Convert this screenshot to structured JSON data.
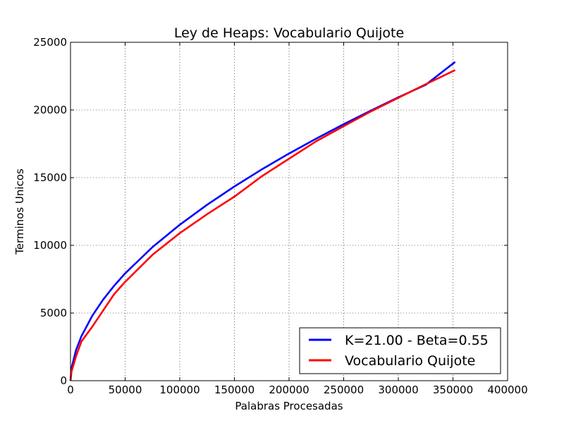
{
  "chart_data": {
    "type": "line",
    "title": "Ley de Heaps: Vocabulario Quijote",
    "xlabel": "Palabras Procesadas",
    "ylabel": "Terminos Unicos",
    "xlim": [
      0,
      400000
    ],
    "ylim": [
      0,
      25000
    ],
    "x_ticks": [
      0,
      50000,
      100000,
      150000,
      200000,
      250000,
      300000,
      350000,
      400000
    ],
    "y_ticks": [
      0,
      5000,
      10000,
      15000,
      20000,
      25000
    ],
    "grid": true,
    "legend_position": "bottom-right",
    "series": [
      {
        "name": "K=21.00 - Beta=0.55",
        "color": "#0000ff",
        "x": [
          0,
          1000,
          5000,
          10000,
          20000,
          30000,
          40000,
          50000,
          75000,
          100000,
          125000,
          150000,
          175000,
          200000,
          225000,
          250000,
          275000,
          300000,
          325000,
          352000
        ],
        "y": [
          0,
          941,
          2253,
          3290,
          4807,
          6004,
          7023,
          7927,
          9870,
          11522,
          13000,
          14350,
          15610,
          16780,
          17890,
          18950,
          19960,
          20930,
          21860,
          23550
        ]
      },
      {
        "name": "Vocabulario Quijote",
        "color": "#ff0000",
        "x": [
          0,
          1000,
          5000,
          10000,
          20000,
          30000,
          40000,
          50000,
          75000,
          100000,
          125000,
          150000,
          175000,
          200000,
          225000,
          250000,
          275000,
          300000,
          325000,
          352000
        ],
        "y": [
          0,
          700,
          1800,
          2900,
          4000,
          5200,
          6400,
          7300,
          9300,
          10900,
          12300,
          13600,
          15100,
          16400,
          17700,
          18800,
          19900,
          20900,
          21900,
          22950
        ]
      }
    ]
  }
}
